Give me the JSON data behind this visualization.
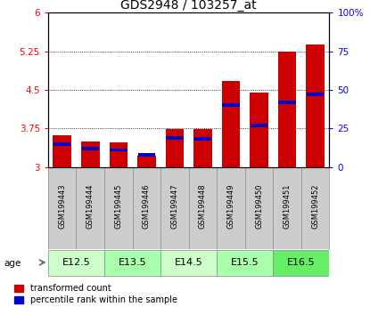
{
  "title": "GDS2948 / 103257_at",
  "samples": [
    "GSM199443",
    "GSM199444",
    "GSM199445",
    "GSM199446",
    "GSM199447",
    "GSM199448",
    "GSM199449",
    "GSM199450",
    "GSM199451",
    "GSM199452"
  ],
  "transformed_count": [
    3.62,
    3.5,
    3.48,
    3.22,
    3.74,
    3.73,
    4.67,
    4.45,
    5.25,
    5.38
  ],
  "percentile_rank": [
    15,
    12,
    11,
    8,
    19,
    18,
    40,
    27,
    42,
    47
  ],
  "age_groups": [
    {
      "label": "E12.5",
      "samples": [
        0,
        1
      ],
      "color": "#ccffcc"
    },
    {
      "label": "E13.5",
      "samples": [
        2,
        3
      ],
      "color": "#aaffaa"
    },
    {
      "label": "E14.5",
      "samples": [
        4,
        5
      ],
      "color": "#ccffcc"
    },
    {
      "label": "E15.5",
      "samples": [
        6,
        7
      ],
      "color": "#aaffaa"
    },
    {
      "label": "E16.5",
      "samples": [
        8,
        9
      ],
      "color": "#66ee66"
    }
  ],
  "ylim_left": [
    3.0,
    6.0
  ],
  "ylim_right": [
    0,
    100
  ],
  "left_ticks": [
    3.0,
    3.75,
    4.5,
    5.25,
    6.0
  ],
  "right_ticks": [
    0,
    25,
    50,
    75,
    100
  ],
  "bar_color": "#cc0000",
  "percentile_color": "#0000cc",
  "bar_width": 0.65,
  "background_color": "#ffffff",
  "cell_bg": "#cccccc",
  "age_label_fontsize": 8,
  "title_fontsize": 10,
  "sample_fontsize": 6,
  "legend_fontsize": 7
}
